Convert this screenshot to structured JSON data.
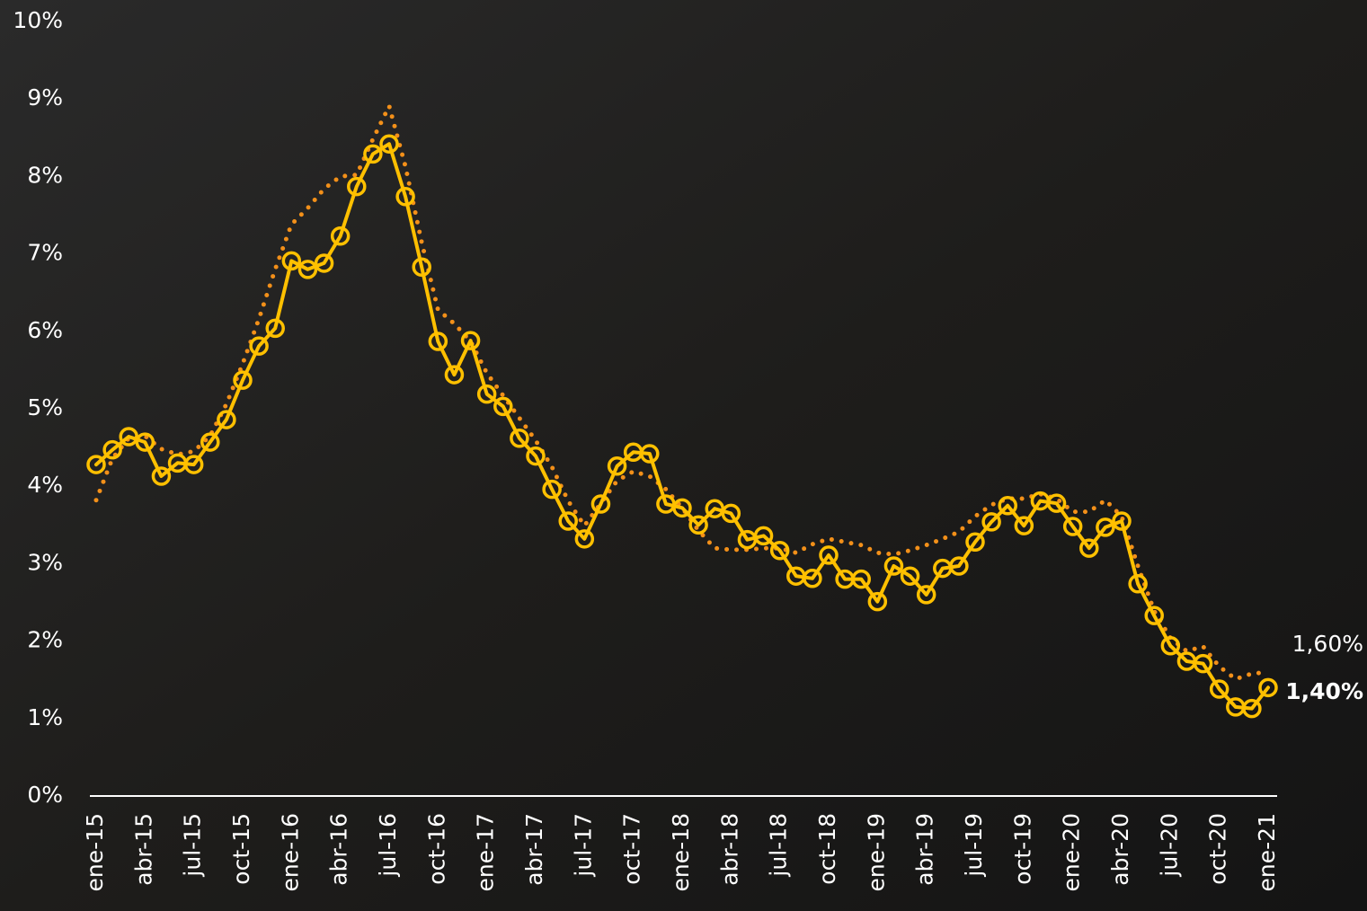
{
  "chart_data": {
    "type": "line",
    "categories": [
      "ene-15",
      null,
      null,
      "abr-15",
      null,
      null,
      "jul-15",
      null,
      null,
      "oct-15",
      null,
      null,
      "ene-16",
      null,
      null,
      "abr-16",
      null,
      null,
      "jul-16",
      null,
      null,
      "oct-16",
      null,
      null,
      "ene-17",
      null,
      null,
      "abr-17",
      null,
      null,
      "jul-17",
      null,
      null,
      "oct-17",
      null,
      null,
      "ene-18",
      null,
      null,
      "abr-18",
      null,
      null,
      "jul-18",
      null,
      null,
      "oct-18",
      null,
      null,
      "ene-19",
      null,
      null,
      "abr-19",
      null,
      null,
      "jul-19",
      null,
      null,
      "oct-19",
      null,
      null,
      "ene-20",
      null,
      null,
      "abr-20",
      null,
      null,
      "jul-20",
      null,
      null,
      "oct-20",
      null,
      null,
      "ene-21"
    ],
    "series": [
      {
        "color": "#f39019",
        "style": "dotted",
        "values": [
          3.82,
          4.36,
          4.62,
          4.65,
          4.48,
          4.41,
          4.45,
          4.65,
          5.06,
          5.58,
          6.16,
          6.8,
          7.38,
          7.59,
          7.84,
          8.0,
          8.02,
          8.48,
          8.91,
          8.13,
          7.15,
          6.28,
          6.1,
          5.87,
          5.46,
          5.17,
          4.88,
          4.59,
          4.25,
          3.81,
          3.49,
          3.78,
          4.07,
          4.19,
          4.13,
          3.96,
          3.72,
          3.43,
          3.2,
          3.18,
          3.18,
          3.2,
          3.2,
          3.14,
          3.25,
          3.32,
          3.28,
          3.24,
          3.14,
          3.12,
          3.17,
          3.24,
          3.32,
          3.41,
          3.61,
          3.76,
          3.84,
          3.84,
          3.9,
          3.84,
          3.67,
          3.67,
          3.82,
          3.61,
          2.97,
          2.39,
          2.04,
          1.87,
          1.93,
          1.67,
          1.51,
          1.58,
          1.6
        ],
        "value_labels": [
          null,
          null,
          null,
          null,
          null,
          null,
          null,
          null,
          null,
          null,
          null,
          null,
          null,
          null,
          null,
          null,
          null,
          null,
          null,
          null,
          null,
          null,
          null,
          null,
          null,
          null,
          null,
          null,
          null,
          null,
          null,
          null,
          null,
          null,
          null,
          null,
          null,
          null,
          null,
          null,
          null,
          null,
          null,
          null,
          null,
          null,
          null,
          null,
          null,
          null,
          null,
          null,
          null,
          null,
          null,
          null,
          null,
          null,
          null,
          null,
          null,
          null,
          null,
          null,
          null,
          null,
          null,
          null,
          null,
          null,
          null,
          null,
          "1,60%"
        ]
      },
      {
        "color": "#ffc000",
        "style": "solid-markers",
        "values": [
          4.28,
          4.47,
          4.64,
          4.57,
          4.13,
          4.3,
          4.28,
          4.57,
          4.86,
          5.37,
          5.81,
          6.04,
          6.91,
          6.8,
          6.88,
          7.23,
          7.87,
          8.29,
          8.42,
          7.74,
          6.83,
          5.87,
          5.44,
          5.88,
          5.19,
          5.03,
          4.62,
          4.39,
          3.96,
          3.55,
          3.32,
          3.77,
          4.26,
          4.44,
          4.42,
          3.77,
          3.72,
          3.5,
          3.71,
          3.65,
          3.31,
          3.36,
          3.17,
          2.84,
          2.81,
          3.11,
          2.8,
          2.8,
          2.51,
          2.97,
          2.84,
          2.6,
          2.94,
          2.97,
          3.28,
          3.54,
          3.75,
          3.49,
          3.81,
          3.78,
          3.48,
          3.2,
          3.47,
          3.55,
          2.74,
          2.33,
          1.94,
          1.74,
          1.71,
          1.38,
          1.15,
          1.13,
          1.4
        ],
        "value_labels": [
          null,
          null,
          null,
          null,
          null,
          null,
          null,
          null,
          null,
          null,
          null,
          null,
          null,
          null,
          null,
          null,
          null,
          null,
          null,
          null,
          null,
          null,
          null,
          null,
          null,
          null,
          null,
          null,
          null,
          null,
          null,
          null,
          null,
          null,
          null,
          null,
          null,
          null,
          null,
          null,
          null,
          null,
          null,
          null,
          null,
          null,
          null,
          null,
          null,
          null,
          null,
          null,
          null,
          null,
          null,
          null,
          null,
          null,
          null,
          null,
          null,
          null,
          null,
          null,
          null,
          null,
          null,
          null,
          null,
          null,
          null,
          null,
          "1,40%"
        ]
      }
    ],
    "ylim": [
      0,
      10
    ],
    "yticks": [
      {
        "value": 0,
        "label": "0%"
      },
      {
        "value": 1,
        "label": "1%"
      },
      {
        "value": 2,
        "label": "2%"
      },
      {
        "value": 3,
        "label": "3%"
      },
      {
        "value": 4,
        "label": "4%"
      },
      {
        "value": 5,
        "label": "5%"
      },
      {
        "value": 6,
        "label": "6%"
      },
      {
        "value": 7,
        "label": "7%"
      },
      {
        "value": 8,
        "label": "8%"
      },
      {
        "value": 9,
        "label": "9%"
      },
      {
        "value": 10,
        "label": "10%"
      }
    ],
    "grid": false
  }
}
